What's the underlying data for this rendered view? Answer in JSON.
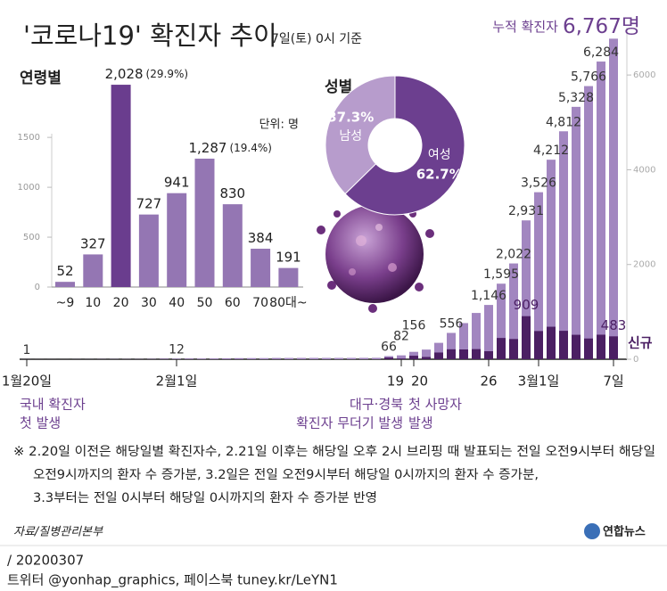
{
  "header": {
    "title": "'코로나19' 확진자 추이",
    "subtitle": "7일(토) 0시 기준"
  },
  "chart_data": [
    {
      "type": "bar",
      "title": "연령별",
      "unit": "단위: 명",
      "categories": [
        "~9",
        "10",
        "20",
        "30",
        "40",
        "50",
        "60",
        "70",
        "80대~"
      ],
      "values": [
        52,
        327,
        2028,
        727,
        941,
        1287,
        830,
        384,
        191
      ],
      "value_labels": [
        "52",
        "327",
        "2,028",
        "727",
        "941",
        "1,287",
        "830",
        "384",
        "191"
      ],
      "share_labels": [
        null,
        null,
        "(29.9%)",
        null,
        null,
        "(19.4%)",
        null,
        null,
        null
      ],
      "colors": [
        "#9476b3",
        "#9476b3",
        "#6a3d8e",
        "#9476b3",
        "#9476b3",
        "#9476b3",
        "#9476b3",
        "#9476b3",
        "#9476b3"
      ],
      "ylim": [
        0,
        2100
      ],
      "yticks": [
        0,
        500,
        1000,
        1500
      ]
    },
    {
      "type": "pie",
      "title": "성별",
      "categories": [
        "남성",
        "여성"
      ],
      "values": [
        37.3,
        62.7
      ],
      "value_labels": [
        "37.3%",
        "62.7%"
      ],
      "colors": [
        "#b79ccc",
        "#6c3f8f"
      ]
    },
    {
      "type": "bar",
      "categories": [
        "1월20일",
        null,
        null,
        null,
        null,
        null,
        null,
        null,
        null,
        null,
        null,
        null,
        "2월1일",
        null,
        null,
        null,
        null,
        null,
        null,
        null,
        null,
        null,
        null,
        null,
        null,
        null,
        null,
        null,
        null,
        null,
        "19",
        "20",
        null,
        null,
        null,
        null,
        null,
        "26",
        null,
        null,
        null,
        "3월1일",
        null,
        null,
        null,
        null,
        null,
        "7일"
      ],
      "series": [
        {
          "name": "누적 확진자",
          "color": "#a286c0",
          "values": [
            1,
            1,
            1,
            1,
            2,
            2,
            3,
            4,
            4,
            4,
            6,
            11,
            12,
            15,
            15,
            16,
            19,
            23,
            24,
            24,
            27,
            27,
            28,
            28,
            28,
            28,
            28,
            29,
            30,
            66,
            82,
            156,
            204,
            346,
            556,
            763,
            977,
            1146,
            1595,
            2022,
            2931,
            3526,
            4212,
            4812,
            5328,
            5766,
            6284,
            6767
          ],
          "value_labels": [
            "1",
            null,
            null,
            null,
            null,
            null,
            null,
            null,
            null,
            null,
            null,
            null,
            "12",
            null,
            null,
            null,
            null,
            null,
            null,
            null,
            null,
            null,
            null,
            null,
            null,
            null,
            null,
            null,
            null,
            "66",
            "82",
            "156",
            null,
            null,
            "556",
            null,
            null,
            "1,146",
            "1,595",
            "2,022",
            "2,931",
            "3,526",
            "4,212",
            "4,812",
            "5,328",
            "5,766",
            "6,284",
            "6,767명"
          ]
        },
        {
          "name": "신규",
          "color": "#4b1f63",
          "values": [
            1,
            0,
            0,
            0,
            1,
            0,
            1,
            1,
            0,
            0,
            2,
            5,
            1,
            3,
            0,
            1,
            3,
            4,
            1,
            0,
            3,
            0,
            1,
            0,
            0,
            0,
            0,
            1,
            1,
            36,
            16,
            74,
            48,
            142,
            210,
            207,
            214,
            169,
            449,
            427,
            909,
            595,
            686,
            600,
            516,
            438,
            518,
            483
          ],
          "value_labels": [
            null,
            null,
            null,
            null,
            null,
            null,
            null,
            null,
            null,
            null,
            null,
            null,
            null,
            null,
            null,
            null,
            null,
            null,
            null,
            null,
            null,
            null,
            null,
            null,
            null,
            null,
            null,
            null,
            null,
            null,
            null,
            null,
            null,
            null,
            null,
            null,
            null,
            null,
            null,
            null,
            "909",
            null,
            null,
            null,
            null,
            null,
            null,
            "483"
          ]
        }
      ],
      "ylim": [
        0,
        7000
      ],
      "yticks": [
        0,
        2000,
        4000,
        6000
      ],
      "events": [
        {
          "lines": [
            "국내 확진자",
            "첫 발생"
          ]
        },
        {
          "lines": [
            "대구·경북",
            "확진자 무더기 발생"
          ]
        },
        {
          "lines": [
            "첫 사망자",
            "발생"
          ]
        }
      ]
    }
  ],
  "notes": [
    "※ 2.20일 이전은 해당일별 확진자수, 2.21일 이후는 해당일 오후 2시 브리핑 때 발표되는 전일 오전9시부터 해당일",
    "오전9시까지의 환자 수 증가분, 3.2일은 전일 오전9시부터 해당일 0시까지의 환자 수 증가분,",
    "3.3부터는 전일 0시부터 해당일 0시까지의 환자 수 증가분 반영"
  ],
  "source": "자료/질병관리본부",
  "logo": "연합뉴스",
  "footer": [
    "/ 20200307",
    "트위터 @yonhap_graphics, 페이스북 tuney.kr/LeYN1"
  ]
}
